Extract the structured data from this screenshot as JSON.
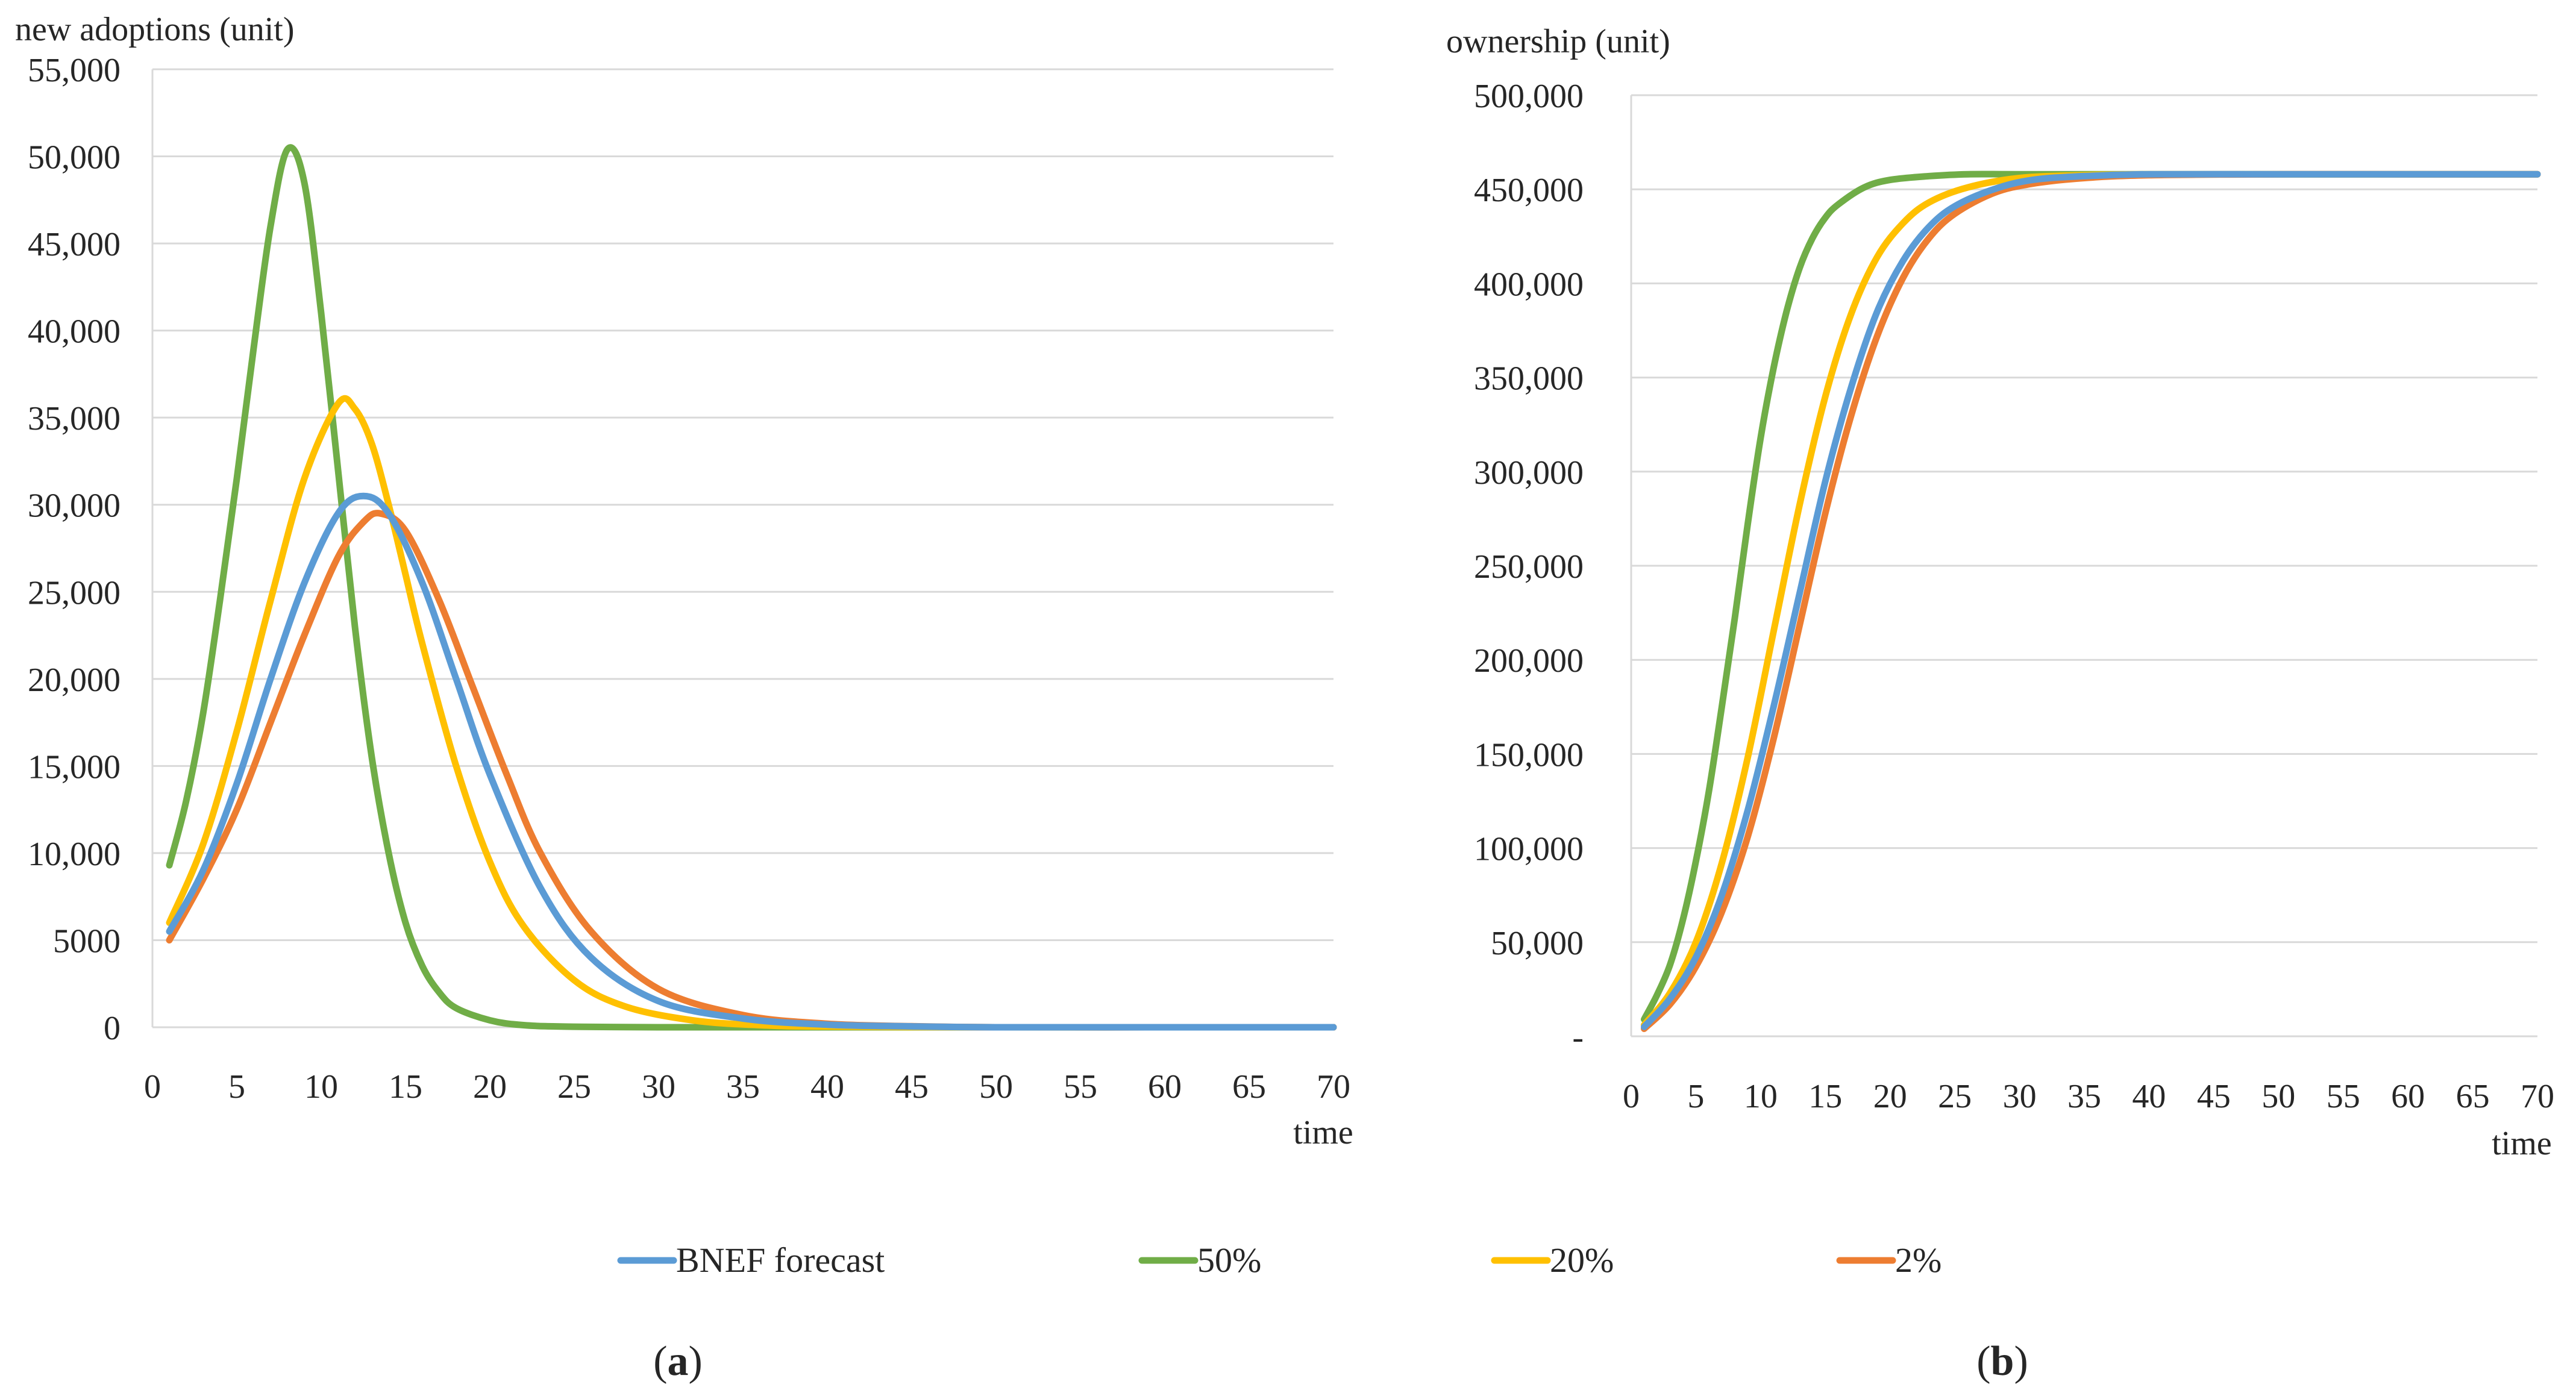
{
  "figure": {
    "legend": [
      {
        "name": "BNEF forecast",
        "color": "#5b9bd5"
      },
      {
        "name": "50%",
        "color": "#70ad47"
      },
      {
        "name": "20%",
        "color": "#ffc000"
      },
      {
        "name": "2%",
        "color": "#ed7d31"
      }
    ],
    "panel_labels": {
      "a": {
        "open": "(",
        "letter": "a",
        "close": ")"
      },
      "b": {
        "open": "(",
        "letter": "b",
        "close": ")"
      }
    }
  },
  "chart_data": [
    {
      "id": "a",
      "type": "line",
      "title": "",
      "ylabel": "new adoptions (unit)",
      "xlabel": "time",
      "xlim": [
        0,
        70
      ],
      "ylim": [
        0,
        55000
      ],
      "xticks": [
        0,
        5,
        10,
        15,
        20,
        25,
        30,
        35,
        40,
        45,
        50,
        55,
        60,
        65,
        70
      ],
      "yticks": [
        0,
        5000,
        10000,
        15000,
        20000,
        25000,
        30000,
        35000,
        40000,
        45000,
        50000,
        55000
      ],
      "ytick_labels": [
        "0",
        "5000",
        "10,000",
        "15,000",
        "20,000",
        "25,000",
        "30,000",
        "35,000",
        "40,000",
        "45,000",
        "50,000",
        "55,000"
      ],
      "grid": true,
      "series": [
        {
          "name": "BNEF forecast",
          "color": "#5b9bd5",
          "x": [
            1,
            3,
            5,
            7,
            9,
            11,
            12.5,
            14,
            16,
            18,
            20,
            23,
            26,
            30,
            35,
            40,
            45,
            50,
            60,
            70
          ],
          "y": [
            5500,
            9000,
            14000,
            20000,
            25500,
            29500,
            30500,
            29500,
            25500,
            20000,
            14500,
            8000,
            4000,
            1500,
            500,
            150,
            50,
            0,
            0,
            0
          ]
        },
        {
          "name": "50%",
          "color": "#70ad47",
          "x": [
            1,
            2,
            3,
            4,
            5,
            6,
            7,
            8,
            9,
            10,
            11,
            12,
            13,
            14,
            15,
            16,
            17,
            18,
            20,
            22,
            25,
            30,
            40,
            50,
            60,
            70
          ],
          "y": [
            9300,
            13000,
            18000,
            24500,
            31500,
            39000,
            46000,
            50400,
            48500,
            41000,
            32000,
            23000,
            15500,
            10000,
            6000,
            3500,
            2000,
            1100,
            400,
            120,
            30,
            0,
            0,
            0,
            0,
            0
          ]
        },
        {
          "name": "20%",
          "color": "#ffc000",
          "x": [
            1,
            3,
            5,
            7,
            9,
            11,
            12,
            13,
            14,
            15,
            16,
            18,
            20,
            22,
            25,
            28,
            32,
            36,
            40,
            50,
            60,
            70
          ],
          "y": [
            6000,
            10500,
            17000,
            24500,
            31500,
            35800,
            35500,
            33500,
            30000,
            26000,
            22000,
            15000,
            9500,
            5800,
            2700,
            1200,
            400,
            120,
            40,
            0,
            0,
            0
          ]
        },
        {
          "name": "2%",
          "color": "#ed7d31",
          "x": [
            1,
            3,
            5,
            7,
            9,
            11,
            12.5,
            13.5,
            15,
            17,
            19,
            21,
            23,
            26,
            30,
            35,
            40,
            45,
            50,
            60,
            70
          ],
          "y": [
            5000,
            8500,
            12500,
            17500,
            22500,
            27000,
            29000,
            29500,
            28500,
            24500,
            19500,
            14500,
            10000,
            5500,
            2200,
            700,
            200,
            60,
            0,
            0,
            0
          ]
        }
      ]
    },
    {
      "id": "b",
      "type": "line",
      "title": "",
      "ylabel": "ownership (unit)",
      "xlabel": "time",
      "xlim": [
        0,
        70
      ],
      "ylim": [
        0,
        500000
      ],
      "xticks": [
        0,
        5,
        10,
        15,
        20,
        25,
        30,
        35,
        40,
        45,
        50,
        55,
        60,
        65,
        70
      ],
      "yticks": [
        0,
        50000,
        100000,
        150000,
        200000,
        250000,
        300000,
        350000,
        400000,
        450000,
        500000
      ],
      "ytick_labels": [
        "-",
        "50,000",
        "100,000",
        "150,000",
        "200,000",
        "250,000",
        "300,000",
        "350,000",
        "400,000",
        "450,000",
        "500,000"
      ],
      "grid": true,
      "series": [
        {
          "name": "BNEF forecast",
          "color": "#5b9bd5",
          "x": [
            1,
            3,
            5,
            7,
            9,
            11,
            13,
            15,
            17,
            19,
            21,
            23,
            25,
            28,
            31,
            35,
            40,
            50,
            60,
            70
          ],
          "y": [
            5000,
            20000,
            42000,
            75000,
            120000,
            175000,
            235000,
            295000,
            345000,
            385000,
            412000,
            430000,
            441000,
            450000,
            455000,
            457000,
            458000,
            458000,
            458000,
            458000
          ]
        },
        {
          "name": "50%",
          "color": "#70ad47",
          "x": [
            1,
            2,
            3,
            4,
            5,
            6,
            7,
            8,
            9,
            10,
            11,
            12,
            13,
            14,
            15,
            16,
            18,
            20,
            23,
            26,
            30,
            40,
            50,
            60,
            70
          ],
          "y": [
            9000,
            22000,
            38000,
            62000,
            93000,
            130000,
            175000,
            222000,
            272000,
            318000,
            355000,
            385000,
            408000,
            424000,
            435000,
            442000,
            451000,
            455000,
            457000,
            458000,
            458000,
            458000,
            458000,
            458000,
            458000
          ]
        },
        {
          "name": "20%",
          "color": "#ffc000",
          "x": [
            1,
            3,
            5,
            7,
            9,
            11,
            13,
            15,
            17,
            19,
            21,
            23,
            26,
            30,
            35,
            40,
            50,
            60,
            70
          ],
          "y": [
            6000,
            23000,
            50000,
            92000,
            148000,
            215000,
            282000,
            340000,
            384000,
            414000,
            432000,
            443000,
            451000,
            456000,
            457500,
            458000,
            458000,
            458000,
            458000
          ]
        },
        {
          "name": "2%",
          "color": "#ed7d31",
          "x": [
            1,
            3,
            5,
            7,
            9,
            11,
            13,
            15,
            17,
            19,
            21,
            23,
            25,
            28,
            31,
            35,
            40,
            50,
            60,
            70
          ],
          "y": [
            4000,
            17000,
            37000,
            66000,
            106000,
            158000,
            218000,
            278000,
            330000,
            372000,
            403000,
            424000,
            437000,
            448000,
            453000,
            456000,
            457500,
            458000,
            458000,
            458000
          ]
        }
      ]
    }
  ]
}
